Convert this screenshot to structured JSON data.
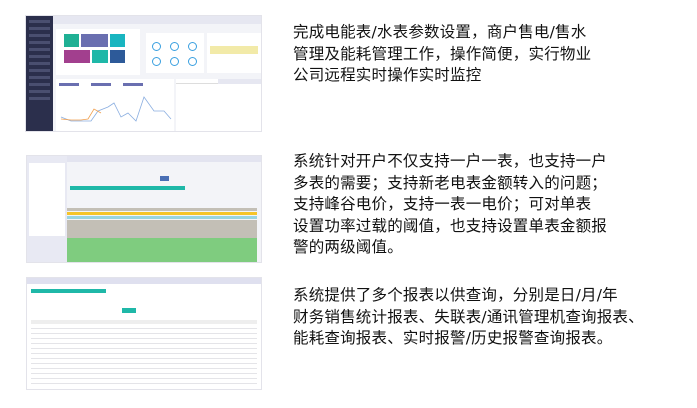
{
  "descriptions": [
    {
      "text": "完成电能表/水表参数设置，商户售电/售水\n管理及能耗管理工作，操作简便，实行物业\n公司远程实时操作实时监控"
    },
    {
      "text": "系统针对开户不仅支持一户一表，也支持一户\n多表的需要；支持新老电表金额转入的问题；\n支持峰谷电价，支持一表一电价；可对单表\n设置功率过载的阈值，也支持设置单表金额报\n警的两级阈值。"
    },
    {
      "text": "系统提供了多个报表以供查询，分别是日/月/年\n财务销售统计报表、失联表/通讯管理机查询报表、\n能耗查询报表、实时报警/历史报警查询报表。"
    }
  ],
  "colors": {
    "sidebar": "#2b2f4c",
    "teal": "#1fb8a8",
    "purple": "#6a6fb0",
    "magenta": "#a23f8e",
    "row_yellow": "#f6c428",
    "row_blue": "#99d4e0",
    "row_gray": "#c3bfb6",
    "row_green": "#7fcc7f"
  }
}
